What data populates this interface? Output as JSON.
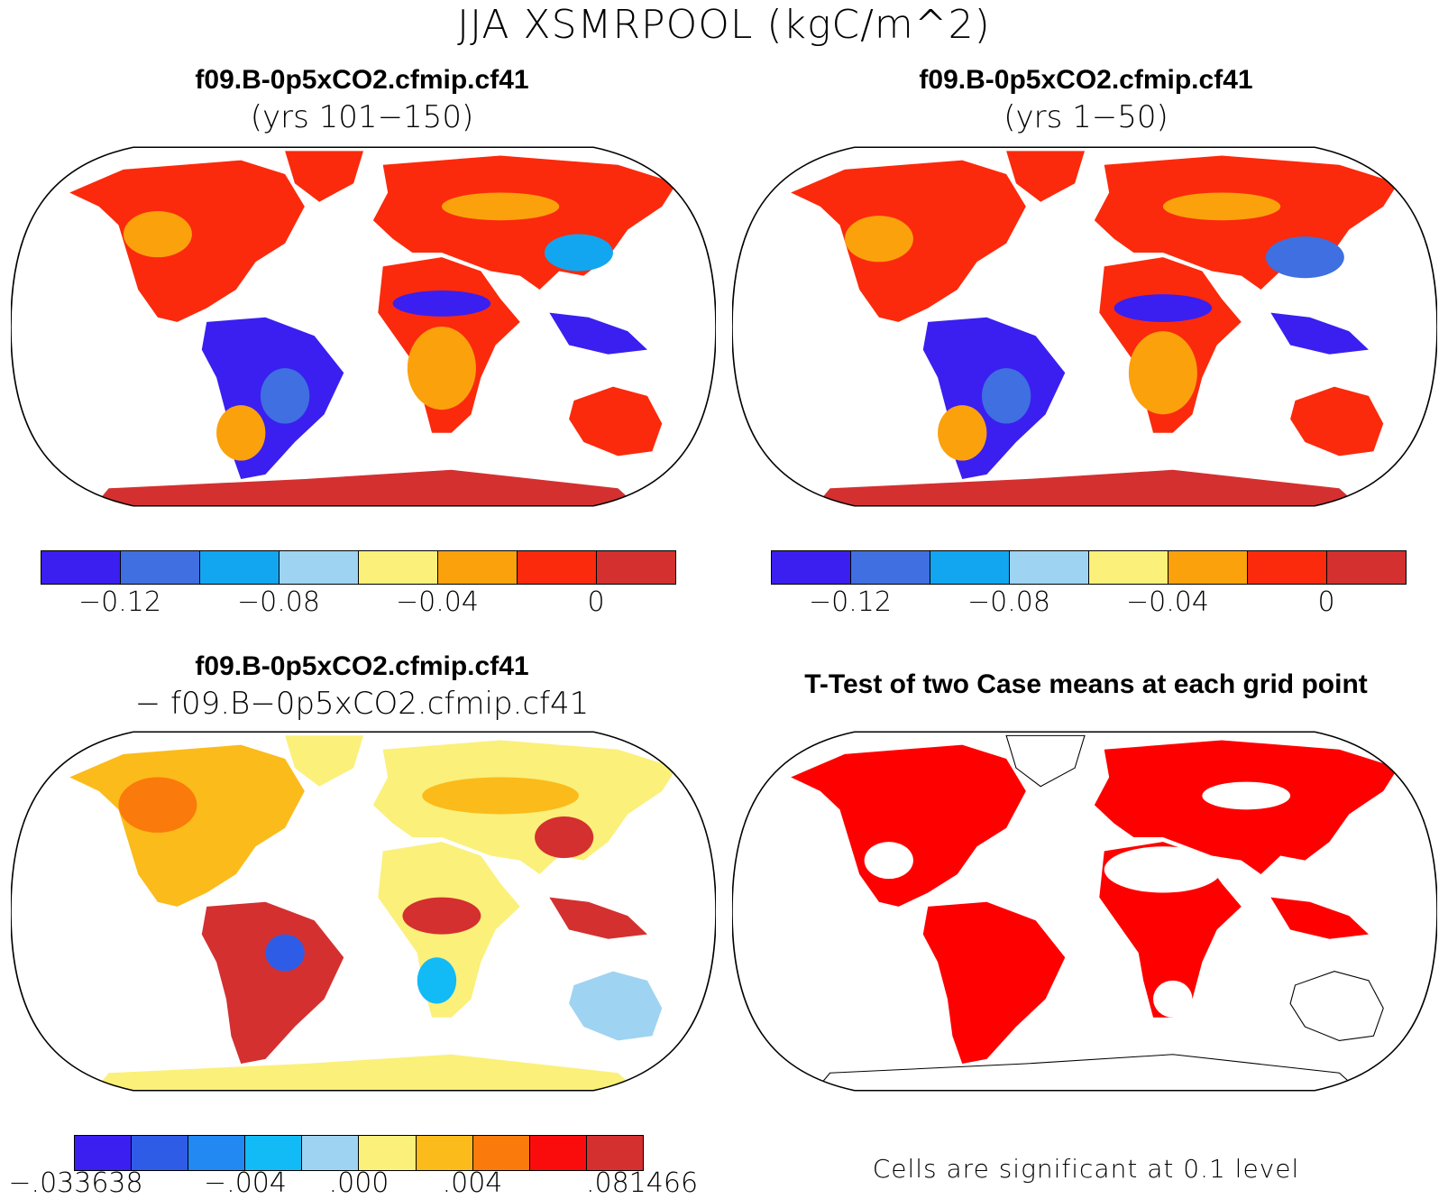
{
  "main_title": "JJA XSMRPOOL (kgC/m^2)",
  "colors": {
    "levels8": [
      "#3a1ff0",
      "#3f6fe0",
      "#12a6f0",
      "#9fd3f2",
      "#fbf07a",
      "#fba10c",
      "#fb2a0c",
      "#d43030"
    ],
    "levels10": [
      "#3a1ff0",
      "#2f5ce6",
      "#2288f2",
      "#12bbf6",
      "#9fd3f2",
      "#fbf07a",
      "#fbbb1a",
      "#fb7a0c",
      "#fb0c0c",
      "#d43030"
    ],
    "significant": "#ff0000",
    "not_significant": "#ffffff"
  },
  "panels": [
    {
      "title": "f09.B-0p5xCO2.cfmip.cf41",
      "subtitle": "(yrs 101−150)",
      "legend_ticks": [
        "−0.12",
        "−0.08",
        "−0.04",
        "0"
      ]
    },
    {
      "title": "f09.B-0p5xCO2.cfmip.cf41",
      "subtitle": "(yrs 1−50)",
      "legend_ticks": [
        "−0.12",
        "−0.08",
        "−0.04",
        "0"
      ]
    },
    {
      "title": "f09.B-0p5xCO2.cfmip.cf41",
      "subtitle": "− f09.B−0p5xCO2.cfmip.cf41",
      "legend_ticks": [
        "−.033638",
        "−.004",
        ".000",
        ".004",
        ".081466"
      ]
    },
    {
      "title": "T-Test of two Case means at each grid point",
      "note": "Cells are significant at 0.1 level"
    }
  ]
}
